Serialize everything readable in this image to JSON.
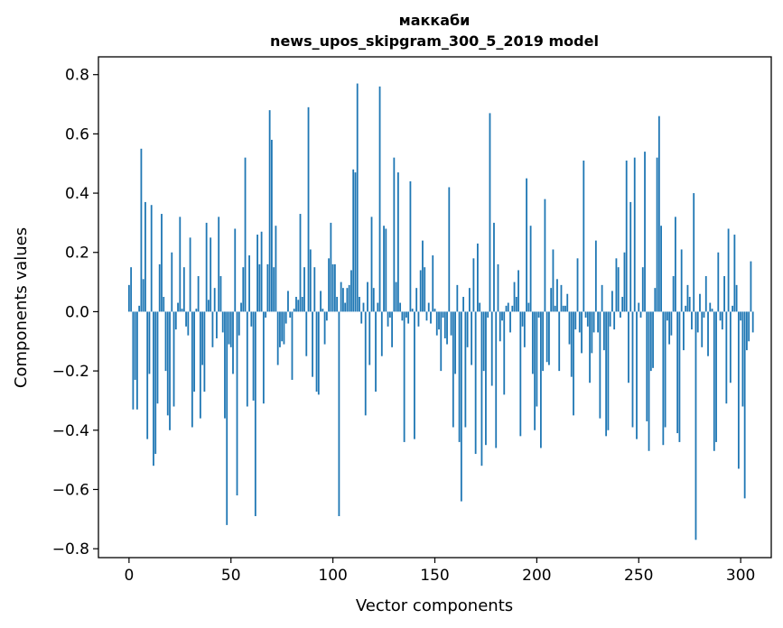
{
  "chart_data": {
    "type": "bar",
    "title": "маккаби",
    "subtitle": "news_upos_skipgram_300_5_2019 model",
    "xlabel": "Vector components",
    "ylabel": "Components values",
    "xlim": [
      -15,
      315
    ],
    "ylim": [
      -0.83,
      0.86
    ],
    "xticks": [
      0,
      50,
      100,
      150,
      200,
      250,
      300
    ],
    "yticks": [
      -0.8,
      -0.6,
      -0.4,
      -0.2,
      0.0,
      0.2,
      0.4,
      0.6,
      0.8
    ],
    "ytick_labels": [
      "−0.8",
      "−0.6",
      "−0.4",
      "−0.2",
      "0.0",
      "0.2",
      "0.4",
      "0.6",
      "0.8"
    ],
    "grid": false,
    "bar_color": "#1f77b4",
    "values": [
      0.09,
      0.15,
      -0.33,
      -0.23,
      -0.33,
      0.02,
      0.55,
      0.11,
      0.37,
      -0.43,
      -0.21,
      0.36,
      -0.52,
      -0.48,
      -0.31,
      0.16,
      0.33,
      0.05,
      -0.2,
      -0.35,
      -0.4,
      0.2,
      -0.32,
      -0.06,
      0.03,
      0.32,
      0.01,
      0.15,
      -0.05,
      -0.08,
      0.25,
      -0.39,
      -0.27,
      0.01,
      0.12,
      -0.36,
      -0.18,
      -0.27,
      0.3,
      0.04,
      0.25,
      -0.12,
      0.08,
      -0.09,
      0.32,
      0.12,
      -0.07,
      -0.36,
      -0.72,
      -0.11,
      -0.12,
      -0.21,
      0.28,
      -0.62,
      -0.08,
      0.03,
      0.15,
      0.52,
      -0.32,
      0.19,
      -0.05,
      -0.3,
      -0.69,
      0.26,
      0.16,
      0.27,
      -0.31,
      -0.02,
      0.16,
      0.68,
      0.58,
      0.15,
      0.29,
      -0.18,
      -0.12,
      -0.1,
      -0.11,
      -0.04,
      0.07,
      -0.02,
      -0.23,
      0.01,
      0.05,
      0.04,
      0.33,
      0.05,
      0.15,
      -0.15,
      0.69,
      0.21,
      -0.22,
      0.15,
      -0.27,
      -0.28,
      0.07,
      0.01,
      -0.11,
      -0.03,
      0.18,
      0.3,
      0.16,
      0.16,
      0.05,
      -0.69,
      0.1,
      0.08,
      0.03,
      0.08,
      0.09,
      0.14,
      0.48,
      0.47,
      0.77,
      0.05,
      -0.04,
      0.03,
      -0.35,
      0.1,
      -0.18,
      0.32,
      0.08,
      -0.27,
      0.03,
      0.76,
      -0.15,
      0.29,
      0.28,
      -0.05,
      -0.02,
      -0.12,
      0.52,
      0.1,
      0.47,
      0.03,
      -0.03,
      -0.44,
      -0.02,
      -0.04,
      0.44,
      0.01,
      -0.43,
      0.08,
      -0.05,
      0.14,
      0.24,
      0.15,
      -0.03,
      0.03,
      -0.04,
      0.19,
      0.01,
      -0.08,
      -0.06,
      -0.2,
      -0.02,
      -0.09,
      -0.11,
      0.42,
      -0.08,
      -0.39,
      -0.21,
      0.09,
      -0.44,
      -0.64,
      0.05,
      -0.39,
      -0.12,
      0.08,
      -0.18,
      0.18,
      -0.48,
      0.23,
      0.03,
      -0.52,
      -0.2,
      -0.45,
      -0.02,
      0.67,
      -0.25,
      0.3,
      -0.46,
      0.16,
      -0.1,
      -0.03,
      -0.28,
      0.02,
      0.03,
      -0.07,
      0.02,
      0.1,
      0.05,
      0.14,
      -0.42,
      -0.05,
      -0.12,
      0.45,
      0.03,
      0.29,
      -0.21,
      -0.4,
      -0.32,
      -0.02,
      -0.46,
      -0.2,
      0.38,
      -0.17,
      -0.18,
      0.08,
      0.21,
      0.02,
      0.11,
      -0.2,
      0.09,
      0.02,
      0.02,
      0.06,
      -0.11,
      -0.22,
      -0.35,
      -0.06,
      0.18,
      -0.07,
      -0.14,
      0.51,
      -0.02,
      -0.05,
      -0.24,
      -0.14,
      -0.07,
      0.24,
      -0.07,
      -0.36,
      0.09,
      -0.13,
      -0.42,
      -0.4,
      -0.05,
      0.07,
      -0.06,
      0.18,
      0.15,
      -0.02,
      0.05,
      0.2,
      0.51,
      -0.24,
      0.37,
      -0.39,
      0.52,
      -0.43,
      0.03,
      -0.02,
      0.15,
      0.54,
      -0.37,
      -0.47,
      -0.2,
      -0.19,
      0.08,
      0.52,
      0.66,
      0.29,
      -0.45,
      -0.39,
      -0.03,
      -0.11,
      -0.08,
      0.12,
      0.32,
      -0.41,
      -0.44,
      0.21,
      -0.13,
      0.02,
      0.09,
      0.05,
      -0.06,
      0.4,
      -0.77,
      -0.07,
      0.06,
      -0.12,
      -0.02,
      0.12,
      -0.15,
      0.03,
      0.01,
      -0.47,
      -0.44,
      0.2,
      -0.03,
      -0.06,
      0.12,
      -0.31,
      0.28,
      -0.24,
      0.02,
      0.26,
      0.09,
      -0.53,
      -0.03,
      -0.32,
      -0.63,
      -0.13,
      -0.1,
      0.17,
      -0.07
    ]
  }
}
